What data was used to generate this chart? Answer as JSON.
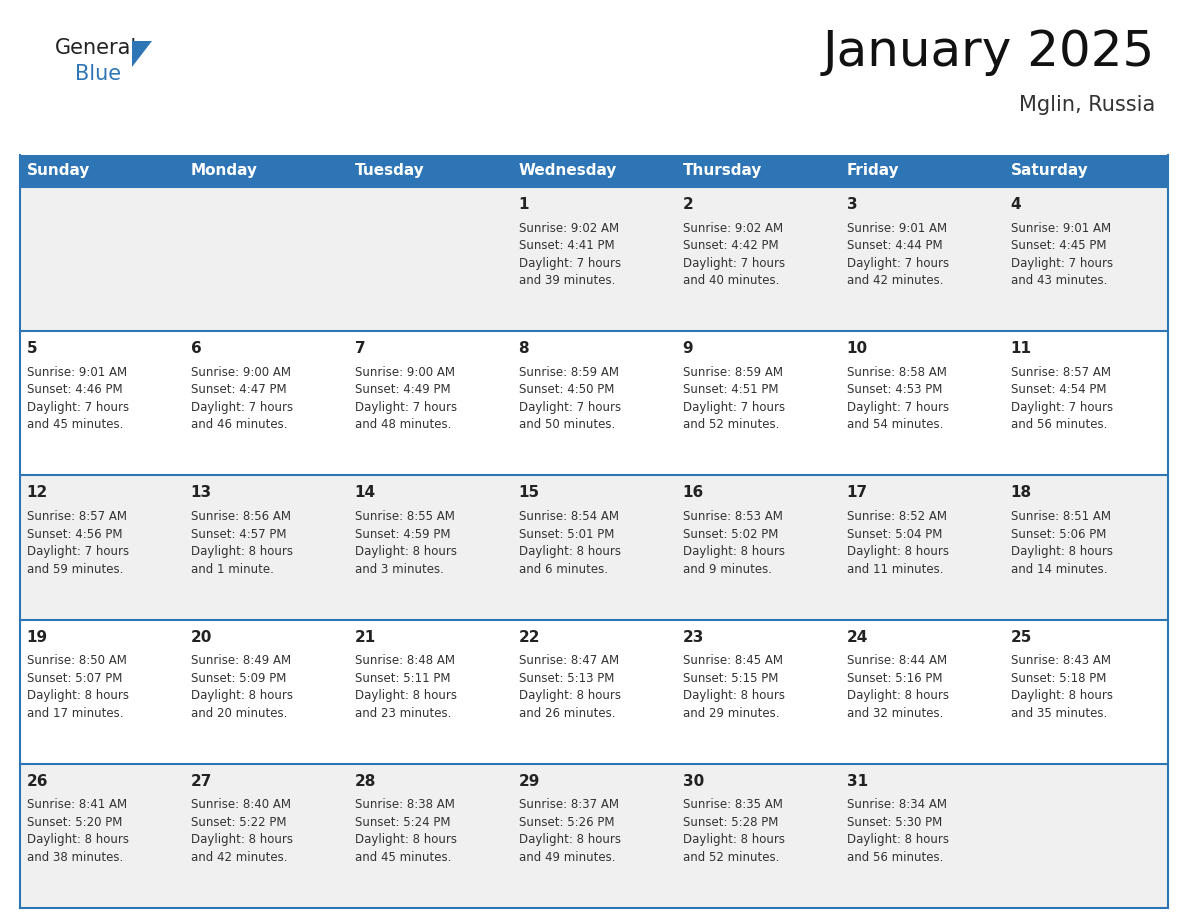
{
  "title": "January 2025",
  "subtitle": "Mglin, Russia",
  "header_color": "#2E75B6",
  "header_text_color": "#FFFFFF",
  "cell_bg_odd": "#F0F0F0",
  "cell_bg_even": "#FFFFFF",
  "border_color": "#2E75B6",
  "days_of_week": [
    "Sunday",
    "Monday",
    "Tuesday",
    "Wednesday",
    "Thursday",
    "Friday",
    "Saturday"
  ],
  "calendar": [
    [
      {
        "day": "",
        "info": ""
      },
      {
        "day": "",
        "info": ""
      },
      {
        "day": "",
        "info": ""
      },
      {
        "day": "1",
        "info": "Sunrise: 9:02 AM\nSunset: 4:41 PM\nDaylight: 7 hours\nand 39 minutes."
      },
      {
        "day": "2",
        "info": "Sunrise: 9:02 AM\nSunset: 4:42 PM\nDaylight: 7 hours\nand 40 minutes."
      },
      {
        "day": "3",
        "info": "Sunrise: 9:01 AM\nSunset: 4:44 PM\nDaylight: 7 hours\nand 42 minutes."
      },
      {
        "day": "4",
        "info": "Sunrise: 9:01 AM\nSunset: 4:45 PM\nDaylight: 7 hours\nand 43 minutes."
      }
    ],
    [
      {
        "day": "5",
        "info": "Sunrise: 9:01 AM\nSunset: 4:46 PM\nDaylight: 7 hours\nand 45 minutes."
      },
      {
        "day": "6",
        "info": "Sunrise: 9:00 AM\nSunset: 4:47 PM\nDaylight: 7 hours\nand 46 minutes."
      },
      {
        "day": "7",
        "info": "Sunrise: 9:00 AM\nSunset: 4:49 PM\nDaylight: 7 hours\nand 48 minutes."
      },
      {
        "day": "8",
        "info": "Sunrise: 8:59 AM\nSunset: 4:50 PM\nDaylight: 7 hours\nand 50 minutes."
      },
      {
        "day": "9",
        "info": "Sunrise: 8:59 AM\nSunset: 4:51 PM\nDaylight: 7 hours\nand 52 minutes."
      },
      {
        "day": "10",
        "info": "Sunrise: 8:58 AM\nSunset: 4:53 PM\nDaylight: 7 hours\nand 54 minutes."
      },
      {
        "day": "11",
        "info": "Sunrise: 8:57 AM\nSunset: 4:54 PM\nDaylight: 7 hours\nand 56 minutes."
      }
    ],
    [
      {
        "day": "12",
        "info": "Sunrise: 8:57 AM\nSunset: 4:56 PM\nDaylight: 7 hours\nand 59 minutes."
      },
      {
        "day": "13",
        "info": "Sunrise: 8:56 AM\nSunset: 4:57 PM\nDaylight: 8 hours\nand 1 minute."
      },
      {
        "day": "14",
        "info": "Sunrise: 8:55 AM\nSunset: 4:59 PM\nDaylight: 8 hours\nand 3 minutes."
      },
      {
        "day": "15",
        "info": "Sunrise: 8:54 AM\nSunset: 5:01 PM\nDaylight: 8 hours\nand 6 minutes."
      },
      {
        "day": "16",
        "info": "Sunrise: 8:53 AM\nSunset: 5:02 PM\nDaylight: 8 hours\nand 9 minutes."
      },
      {
        "day": "17",
        "info": "Sunrise: 8:52 AM\nSunset: 5:04 PM\nDaylight: 8 hours\nand 11 minutes."
      },
      {
        "day": "18",
        "info": "Sunrise: 8:51 AM\nSunset: 5:06 PM\nDaylight: 8 hours\nand 14 minutes."
      }
    ],
    [
      {
        "day": "19",
        "info": "Sunrise: 8:50 AM\nSunset: 5:07 PM\nDaylight: 8 hours\nand 17 minutes."
      },
      {
        "day": "20",
        "info": "Sunrise: 8:49 AM\nSunset: 5:09 PM\nDaylight: 8 hours\nand 20 minutes."
      },
      {
        "day": "21",
        "info": "Sunrise: 8:48 AM\nSunset: 5:11 PM\nDaylight: 8 hours\nand 23 minutes."
      },
      {
        "day": "22",
        "info": "Sunrise: 8:47 AM\nSunset: 5:13 PM\nDaylight: 8 hours\nand 26 minutes."
      },
      {
        "day": "23",
        "info": "Sunrise: 8:45 AM\nSunset: 5:15 PM\nDaylight: 8 hours\nand 29 minutes."
      },
      {
        "day": "24",
        "info": "Sunrise: 8:44 AM\nSunset: 5:16 PM\nDaylight: 8 hours\nand 32 minutes."
      },
      {
        "day": "25",
        "info": "Sunrise: 8:43 AM\nSunset: 5:18 PM\nDaylight: 8 hours\nand 35 minutes."
      }
    ],
    [
      {
        "day": "26",
        "info": "Sunrise: 8:41 AM\nSunset: 5:20 PM\nDaylight: 8 hours\nand 38 minutes."
      },
      {
        "day": "27",
        "info": "Sunrise: 8:40 AM\nSunset: 5:22 PM\nDaylight: 8 hours\nand 42 minutes."
      },
      {
        "day": "28",
        "info": "Sunrise: 8:38 AM\nSunset: 5:24 PM\nDaylight: 8 hours\nand 45 minutes."
      },
      {
        "day": "29",
        "info": "Sunrise: 8:37 AM\nSunset: 5:26 PM\nDaylight: 8 hours\nand 49 minutes."
      },
      {
        "day": "30",
        "info": "Sunrise: 8:35 AM\nSunset: 5:28 PM\nDaylight: 8 hours\nand 52 minutes."
      },
      {
        "day": "31",
        "info": "Sunrise: 8:34 AM\nSunset: 5:30 PM\nDaylight: 8 hours\nand 56 minutes."
      },
      {
        "day": "",
        "info": ""
      }
    ]
  ],
  "logo_general_color": "#222222",
  "logo_blue_color": "#2E75B6",
  "title_fontsize": 36,
  "subtitle_fontsize": 15,
  "day_fontsize": 11,
  "info_fontsize": 8.5,
  "header_fontsize": 11,
  "logo_fontsize": 15
}
